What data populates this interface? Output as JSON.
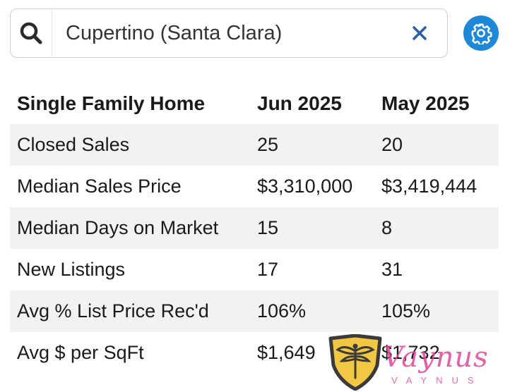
{
  "search": {
    "value": "Cupertino (Santa Clara)",
    "icon": "search-icon",
    "clear_icon": "close-icon"
  },
  "settings": {
    "icon": "gear-icon",
    "color": "#1e88d6"
  },
  "table": {
    "headers": [
      "Single Family Home",
      "Jun 2025",
      "May 2025"
    ],
    "rows": [
      [
        "Closed Sales",
        "25",
        "20"
      ],
      [
        "Median Sales Price",
        "$3,310,000",
        "$3,419,444"
      ],
      [
        "Median Days on Market",
        "15",
        "8"
      ],
      [
        "New Listings",
        "17",
        "31"
      ],
      [
        "Avg % List Price Rec'd",
        "106%",
        "105%"
      ],
      [
        "Avg $ per SqFt",
        "$1,649",
        "$1,732"
      ]
    ]
  },
  "logo": {
    "script": "Vaynus",
    "wordmark": "VAYNUS",
    "accent": "#dc4696",
    "shield_color": "#f2c744"
  }
}
